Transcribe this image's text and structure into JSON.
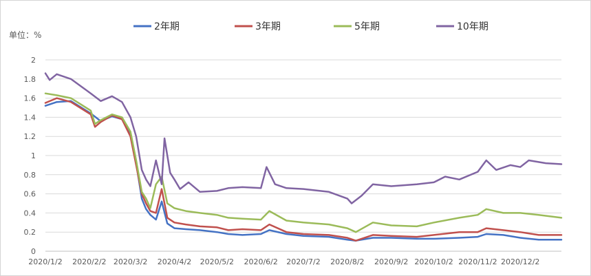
{
  "chart_data": {
    "type": "line",
    "title": "",
    "ylabel": "单位：%",
    "xlabel": "",
    "ylim": [
      0,
      2
    ],
    "yticks": [
      0,
      0.2,
      0.4,
      0.6,
      0.8,
      1,
      1.2,
      1.4,
      1.6,
      1.8,
      2
    ],
    "ytick_labels": [
      "0",
      "0.2",
      "0.4",
      "0.6",
      "0.8",
      "1",
      "1.2",
      "1.4",
      "1.6",
      "1.8",
      "2"
    ],
    "xticks": [
      "2020/1/2",
      "2020/2/2",
      "2020/3/2",
      "2020/4/2",
      "2020/5/2",
      "2020/6/2",
      "2020/7/2",
      "2020/8/2",
      "2020/9/2",
      "2020/10/2",
      "2020/11/2",
      "2020/12/2"
    ],
    "xlim": [
      "2020/1/2",
      "2020/12/31"
    ],
    "grid": "horizontal",
    "legend_position": "top",
    "series": [
      {
        "name": "2年期",
        "color": "#4472C4",
        "points": [
          [
            "2020/1/2",
            1.52
          ],
          [
            "2020/1/10",
            1.56
          ],
          [
            "2020/1/20",
            1.57
          ],
          [
            "2020/2/3",
            1.44
          ],
          [
            "2020/2/10",
            1.36
          ],
          [
            "2020/2/18",
            1.41
          ],
          [
            "2020/2/25",
            1.38
          ],
          [
            "2020/3/2",
            1.22
          ],
          [
            "2020/3/6",
            0.92
          ],
          [
            "2020/3/10",
            0.55
          ],
          [
            "2020/3/13",
            0.44
          ],
          [
            "2020/3/16",
            0.38
          ],
          [
            "2020/3/20",
            0.33
          ],
          [
            "2020/3/24",
            0.52
          ],
          [
            "2020/3/28",
            0.29
          ],
          [
            "2020/4/2",
            0.24
          ],
          [
            "2020/4/10",
            0.23
          ],
          [
            "2020/4/20",
            0.22
          ],
          [
            "2020/5/2",
            0.2
          ],
          [
            "2020/5/10",
            0.18
          ],
          [
            "2020/5/20",
            0.17
          ],
          [
            "2020/6/2",
            0.18
          ],
          [
            "2020/6/8",
            0.22
          ],
          [
            "2020/6/20",
            0.18
          ],
          [
            "2020/7/2",
            0.16
          ],
          [
            "2020/7/20",
            0.15
          ],
          [
            "2020/8/2",
            0.12
          ],
          [
            "2020/8/8",
            0.11
          ],
          [
            "2020/8/20",
            0.14
          ],
          [
            "2020/9/2",
            0.14
          ],
          [
            "2020/9/20",
            0.13
          ],
          [
            "2020/10/2",
            0.13
          ],
          [
            "2020/10/20",
            0.14
          ],
          [
            "2020/11/2",
            0.15
          ],
          [
            "2020/11/8",
            0.18
          ],
          [
            "2020/11/20",
            0.17
          ],
          [
            "2020/12/2",
            0.14
          ],
          [
            "2020/12/15",
            0.12
          ],
          [
            "2020/12/31",
            0.12
          ]
        ]
      },
      {
        "name": "3年期",
        "color": "#C0504D",
        "points": [
          [
            "2020/1/2",
            1.55
          ],
          [
            "2020/1/10",
            1.6
          ],
          [
            "2020/1/20",
            1.56
          ],
          [
            "2020/2/3",
            1.43
          ],
          [
            "2020/2/6",
            1.3
          ],
          [
            "2020/2/10",
            1.35
          ],
          [
            "2020/2/18",
            1.42
          ],
          [
            "2020/2/25",
            1.38
          ],
          [
            "2020/3/2",
            1.2
          ],
          [
            "2020/3/6",
            0.9
          ],
          [
            "2020/3/10",
            0.6
          ],
          [
            "2020/3/13",
            0.5
          ],
          [
            "2020/3/16",
            0.42
          ],
          [
            "2020/3/20",
            0.4
          ],
          [
            "2020/3/24",
            0.65
          ],
          [
            "2020/3/28",
            0.35
          ],
          [
            "2020/4/2",
            0.3
          ],
          [
            "2020/4/10",
            0.28
          ],
          [
            "2020/4/20",
            0.26
          ],
          [
            "2020/5/2",
            0.25
          ],
          [
            "2020/5/10",
            0.22
          ],
          [
            "2020/5/20",
            0.23
          ],
          [
            "2020/6/2",
            0.22
          ],
          [
            "2020/6/8",
            0.28
          ],
          [
            "2020/6/20",
            0.2
          ],
          [
            "2020/7/2",
            0.18
          ],
          [
            "2020/7/20",
            0.17
          ],
          [
            "2020/8/2",
            0.14
          ],
          [
            "2020/8/8",
            0.11
          ],
          [
            "2020/8/20",
            0.17
          ],
          [
            "2020/9/2",
            0.16
          ],
          [
            "2020/9/20",
            0.15
          ],
          [
            "2020/10/2",
            0.17
          ],
          [
            "2020/10/20",
            0.2
          ],
          [
            "2020/11/2",
            0.2
          ],
          [
            "2020/11/8",
            0.24
          ],
          [
            "2020/11/20",
            0.22
          ],
          [
            "2020/12/2",
            0.2
          ],
          [
            "2020/12/15",
            0.17
          ],
          [
            "2020/12/31",
            0.17
          ]
        ]
      },
      {
        "name": "5年期",
        "color": "#9BBB59",
        "points": [
          [
            "2020/1/2",
            1.65
          ],
          [
            "2020/1/10",
            1.63
          ],
          [
            "2020/1/20",
            1.6
          ],
          [
            "2020/2/3",
            1.47
          ],
          [
            "2020/2/6",
            1.33
          ],
          [
            "2020/2/10",
            1.37
          ],
          [
            "2020/2/18",
            1.43
          ],
          [
            "2020/2/25",
            1.4
          ],
          [
            "2020/3/2",
            1.25
          ],
          [
            "2020/3/6",
            0.95
          ],
          [
            "2020/3/10",
            0.62
          ],
          [
            "2020/3/13",
            0.55
          ],
          [
            "2020/3/16",
            0.45
          ],
          [
            "2020/3/20",
            0.7
          ],
          [
            "2020/3/24",
            0.78
          ],
          [
            "2020/3/28",
            0.5
          ],
          [
            "2020/4/2",
            0.45
          ],
          [
            "2020/4/10",
            0.42
          ],
          [
            "2020/4/20",
            0.4
          ],
          [
            "2020/5/2",
            0.38
          ],
          [
            "2020/5/10",
            0.35
          ],
          [
            "2020/5/20",
            0.34
          ],
          [
            "2020/6/2",
            0.33
          ],
          [
            "2020/6/8",
            0.42
          ],
          [
            "2020/6/20",
            0.32
          ],
          [
            "2020/7/2",
            0.3
          ],
          [
            "2020/7/20",
            0.28
          ],
          [
            "2020/8/2",
            0.24
          ],
          [
            "2020/8/8",
            0.2
          ],
          [
            "2020/8/20",
            0.3
          ],
          [
            "2020/9/2",
            0.27
          ],
          [
            "2020/9/20",
            0.26
          ],
          [
            "2020/10/2",
            0.3
          ],
          [
            "2020/10/20",
            0.35
          ],
          [
            "2020/11/2",
            0.38
          ],
          [
            "2020/11/8",
            0.44
          ],
          [
            "2020/11/20",
            0.4
          ],
          [
            "2020/12/2",
            0.4
          ],
          [
            "2020/12/15",
            0.38
          ],
          [
            "2020/12/31",
            0.35
          ]
        ]
      },
      {
        "name": "10年期",
        "color": "#8064A2",
        "points": [
          [
            "2020/1/2",
            1.86
          ],
          [
            "2020/1/5",
            1.79
          ],
          [
            "2020/1/10",
            1.85
          ],
          [
            "2020/1/20",
            1.8
          ],
          [
            "2020/2/3",
            1.65
          ],
          [
            "2020/2/10",
            1.57
          ],
          [
            "2020/2/18",
            1.62
          ],
          [
            "2020/2/25",
            1.56
          ],
          [
            "2020/3/2",
            1.4
          ],
          [
            "2020/3/6",
            1.2
          ],
          [
            "2020/3/10",
            0.85
          ],
          [
            "2020/3/13",
            0.75
          ],
          [
            "2020/3/16",
            0.68
          ],
          [
            "2020/3/20",
            0.95
          ],
          [
            "2020/3/24",
            0.7
          ],
          [
            "2020/3/26",
            1.18
          ],
          [
            "2020/3/30",
            0.82
          ],
          [
            "2020/4/2",
            0.75
          ],
          [
            "2020/4/6",
            0.65
          ],
          [
            "2020/4/12",
            0.72
          ],
          [
            "2020/4/20",
            0.62
          ],
          [
            "2020/5/2",
            0.63
          ],
          [
            "2020/5/10",
            0.66
          ],
          [
            "2020/5/20",
            0.67
          ],
          [
            "2020/6/2",
            0.66
          ],
          [
            "2020/6/6",
            0.88
          ],
          [
            "2020/6/12",
            0.7
          ],
          [
            "2020/6/20",
            0.66
          ],
          [
            "2020/7/2",
            0.65
          ],
          [
            "2020/7/20",
            0.62
          ],
          [
            "2020/8/2",
            0.55
          ],
          [
            "2020/8/5",
            0.5
          ],
          [
            "2020/8/12",
            0.58
          ],
          [
            "2020/8/20",
            0.7
          ],
          [
            "2020/9/2",
            0.68
          ],
          [
            "2020/9/20",
            0.7
          ],
          [
            "2020/10/2",
            0.72
          ],
          [
            "2020/10/10",
            0.78
          ],
          [
            "2020/10/20",
            0.75
          ],
          [
            "2020/11/2",
            0.83
          ],
          [
            "2020/11/8",
            0.95
          ],
          [
            "2020/11/15",
            0.85
          ],
          [
            "2020/11/25",
            0.9
          ],
          [
            "2020/12/2",
            0.88
          ],
          [
            "2020/12/8",
            0.95
          ],
          [
            "2020/12/20",
            0.92
          ],
          [
            "2020/12/31",
            0.91
          ]
        ]
      }
    ]
  }
}
